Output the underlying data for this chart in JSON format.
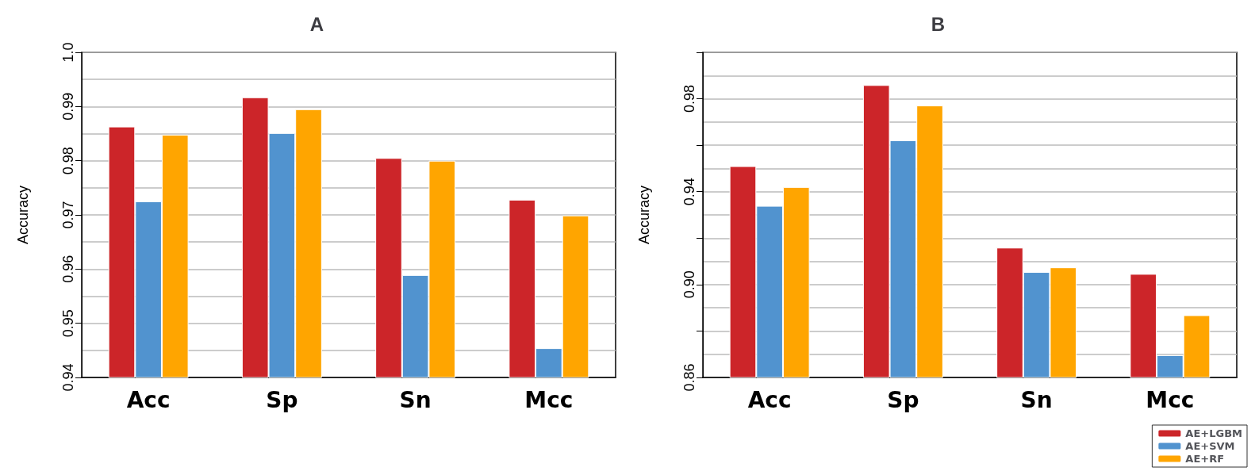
{
  "chart_data": [
    {
      "type": "bar",
      "title": "A",
      "ylabel": "Accuracy",
      "categories": [
        "Acc",
        "Sp",
        "Sn",
        "Mcc"
      ],
      "series": [
        {
          "color": "#cc2529",
          "values": [
            0.9863,
            0.9917,
            0.9805,
            0.9728
          ]
        },
        {
          "color": "#5193cf",
          "values": [
            0.9725,
            0.9851,
            0.9589,
            0.9454
          ]
        },
        {
          "color": "#ffa500",
          "values": [
            0.9848,
            0.9895,
            0.98,
            0.9699
          ]
        }
      ],
      "ylim": [
        0.94,
        1.0
      ],
      "yticks": [
        0.94,
        0.95,
        0.96,
        0.97,
        0.98,
        0.99,
        {
          "value": 1.0,
          "label": "1.0"
        }
      ],
      "grid": "y",
      "legend": false
    },
    {
      "type": "bar",
      "title": "B",
      "ylabel": "Accuracy",
      "categories": [
        "Acc",
        "Sp",
        "Sn",
        "Mcc"
      ],
      "series": [
        {
          "name": "AE+LGBM",
          "color": "#cc2529",
          "values": [
            0.951,
            0.9859,
            0.9159,
            0.9046
          ]
        },
        {
          "name": "AE+SVM",
          "color": "#5193cf",
          "values": [
            0.9339,
            0.9621,
            0.9054,
            0.8696
          ]
        },
        {
          "name": "AE+RF",
          "color": "#ffa500",
          "values": [
            0.942,
            0.9771,
            0.9074,
            0.8868
          ]
        }
      ],
      "ylim": [
        0.86,
        1.0
      ],
      "yticks": [
        0.86,
        {
          "value": 0.88,
          "label": null
        },
        {
          "value": 0.9,
          "label": "0.90"
        },
        {
          "value": 0.92,
          "label": null
        },
        0.94,
        {
          "value": 0.96,
          "label": null
        },
        0.98,
        {
          "value": 1.0,
          "label": null
        }
      ],
      "grid": "y",
      "legend": "bottom right"
    }
  ]
}
